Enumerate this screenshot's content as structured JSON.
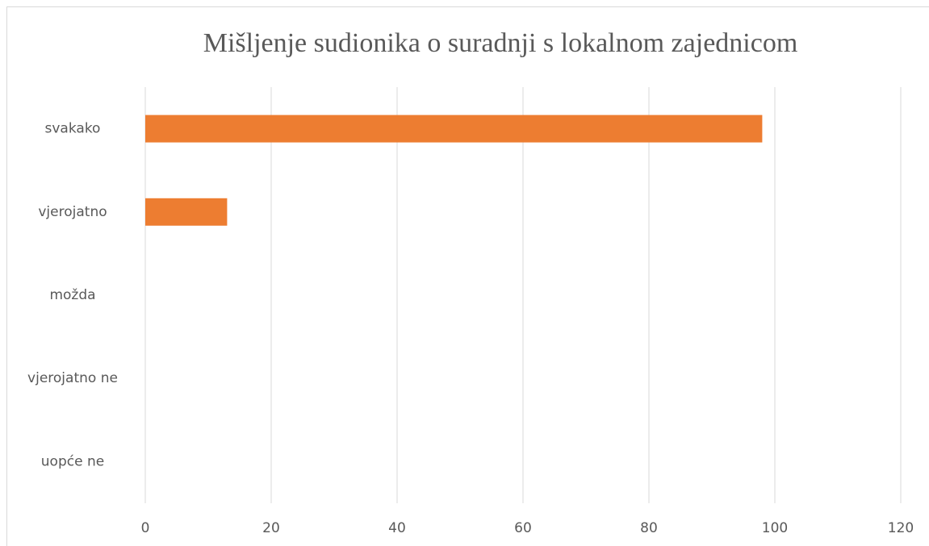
{
  "chart_data": {
    "type": "bar",
    "orientation": "horizontal",
    "title": "Mišljenje  sudionika o suradnji s lokalnom zajednicom",
    "categories": [
      "svakako",
      "vjerojatno",
      "možda",
      "vjerojatno ne",
      "uopće ne"
    ],
    "values": [
      98,
      13,
      0,
      0,
      0
    ],
    "color": "#ed7d31",
    "xlim": [
      0,
      120
    ],
    "xticks": [
      0,
      20,
      40,
      60,
      80,
      100,
      120
    ],
    "grid": true
  }
}
